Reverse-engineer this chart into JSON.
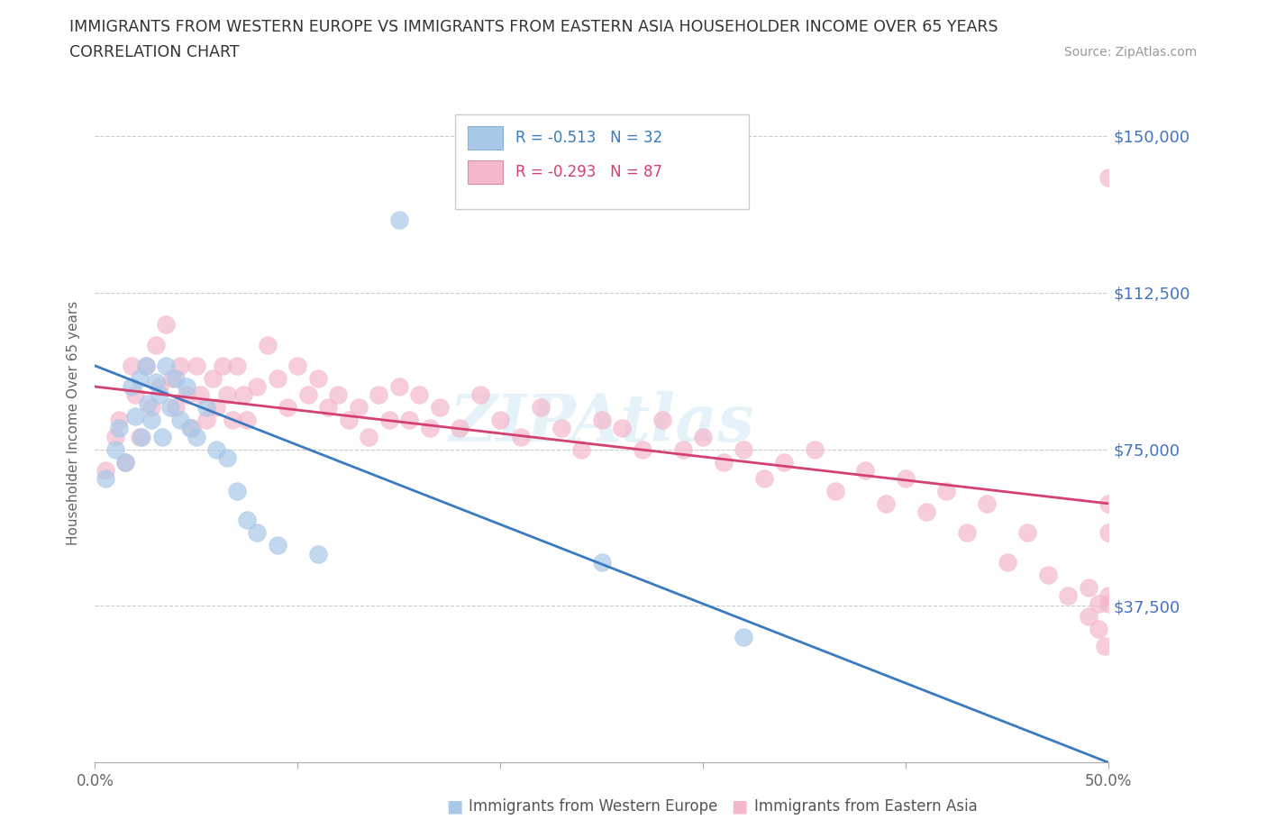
{
  "title_line1": "IMMIGRANTS FROM WESTERN EUROPE VS IMMIGRANTS FROM EASTERN ASIA HOUSEHOLDER INCOME OVER 65 YEARS",
  "title_line2": "CORRELATION CHART",
  "source_text": "Source: ZipAtlas.com",
  "ylabel": "Householder Income Over 65 years",
  "xlim": [
    0.0,
    0.5
  ],
  "ylim": [
    0,
    162500
  ],
  "yticks": [
    0,
    37500,
    75000,
    112500,
    150000
  ],
  "ytick_labels": [
    "",
    "$37,500",
    "$75,000",
    "$112,500",
    "$150,000"
  ],
  "xticks": [
    0.0,
    0.1,
    0.2,
    0.3,
    0.4,
    0.5
  ],
  "xtick_labels": [
    "0.0%",
    "",
    "",
    "",
    "",
    "50.0%"
  ],
  "grid_color": "#cccccc",
  "bg_color": "#ffffff",
  "blue_color": "#a8c8e8",
  "pink_color": "#f4b8cc",
  "blue_line_color": "#3a7abf",
  "pink_line_color": "#d44070",
  "ytick_color": "#4472c4",
  "legend_text1": "R = -0.513   N = 32",
  "legend_text2": "R = -0.293   N = 87",
  "label1": "Immigrants from Western Europe",
  "label2": "Immigrants from Eastern Asia",
  "watermark": "ZIPAtlas",
  "blue_x": [
    0.005,
    0.01,
    0.012,
    0.015,
    0.018,
    0.02,
    0.022,
    0.023,
    0.025,
    0.026,
    0.028,
    0.03,
    0.032,
    0.033,
    0.035,
    0.037,
    0.04,
    0.042,
    0.045,
    0.047,
    0.05,
    0.055,
    0.06,
    0.065,
    0.07,
    0.075,
    0.08,
    0.09,
    0.11,
    0.15,
    0.25,
    0.32
  ],
  "blue_y": [
    68000,
    75000,
    80000,
    72000,
    90000,
    83000,
    92000,
    78000,
    95000,
    86000,
    82000,
    91000,
    88000,
    78000,
    95000,
    85000,
    92000,
    82000,
    90000,
    80000,
    78000,
    85000,
    75000,
    73000,
    65000,
    58000,
    55000,
    52000,
    50000,
    130000,
    48000,
    30000
  ],
  "pink_x": [
    0.005,
    0.01,
    0.012,
    0.015,
    0.018,
    0.02,
    0.022,
    0.025,
    0.028,
    0.03,
    0.032,
    0.035,
    0.038,
    0.04,
    0.042,
    0.045,
    0.048,
    0.05,
    0.052,
    0.055,
    0.058,
    0.06,
    0.063,
    0.065,
    0.068,
    0.07,
    0.073,
    0.075,
    0.08,
    0.085,
    0.09,
    0.095,
    0.1,
    0.105,
    0.11,
    0.115,
    0.12,
    0.125,
    0.13,
    0.135,
    0.14,
    0.145,
    0.15,
    0.155,
    0.16,
    0.165,
    0.17,
    0.18,
    0.19,
    0.2,
    0.21,
    0.22,
    0.23,
    0.24,
    0.25,
    0.26,
    0.27,
    0.28,
    0.29,
    0.3,
    0.31,
    0.32,
    0.33,
    0.34,
    0.355,
    0.365,
    0.38,
    0.39,
    0.4,
    0.41,
    0.42,
    0.43,
    0.44,
    0.45,
    0.46,
    0.47,
    0.48,
    0.49,
    0.49,
    0.495,
    0.495,
    0.498,
    0.5,
    0.5,
    0.5,
    0.5,
    0.5
  ],
  "pink_y": [
    70000,
    78000,
    82000,
    72000,
    95000,
    88000,
    78000,
    95000,
    85000,
    100000,
    90000,
    105000,
    92000,
    85000,
    95000,
    88000,
    80000,
    95000,
    88000,
    82000,
    92000,
    85000,
    95000,
    88000,
    82000,
    95000,
    88000,
    82000,
    90000,
    100000,
    92000,
    85000,
    95000,
    88000,
    92000,
    85000,
    88000,
    82000,
    85000,
    78000,
    88000,
    82000,
    90000,
    82000,
    88000,
    80000,
    85000,
    80000,
    88000,
    82000,
    78000,
    85000,
    80000,
    75000,
    82000,
    80000,
    75000,
    82000,
    75000,
    78000,
    72000,
    75000,
    68000,
    72000,
    75000,
    65000,
    70000,
    62000,
    68000,
    60000,
    65000,
    55000,
    62000,
    48000,
    55000,
    45000,
    40000,
    35000,
    42000,
    38000,
    32000,
    28000,
    55000,
    62000,
    140000,
    40000,
    38000
  ]
}
